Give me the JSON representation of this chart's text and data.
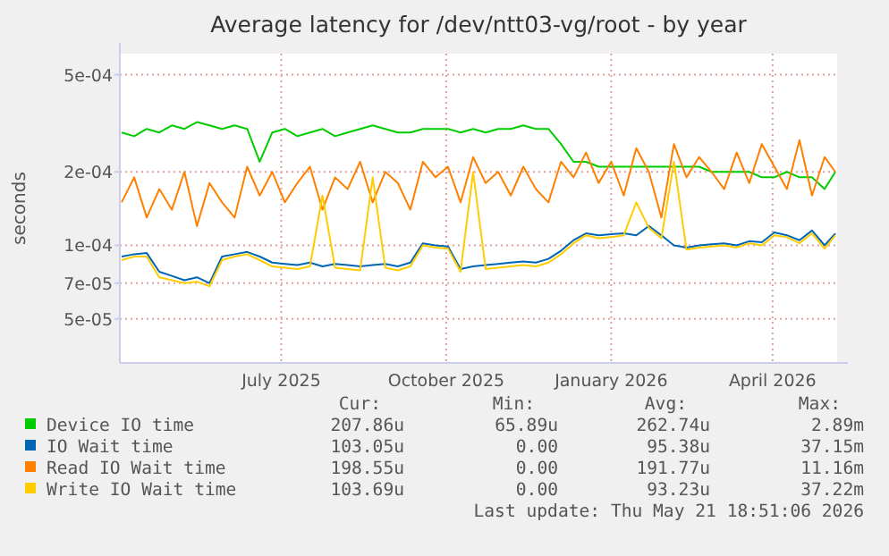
{
  "chart_data": {
    "type": "line",
    "title": "Average latency for /dev/ntt03-vg/root - by year",
    "ylabel": "seconds",
    "log": true,
    "grid": true,
    "legend": "bottom",
    "ylim": [
      3.3e-05,
      0.00061
    ],
    "yticks": [
      {
        "value": 5e-05,
        "label": "5e-05"
      },
      {
        "value": 7e-05,
        "label": "7e-05"
      },
      {
        "value": 0.0001,
        "label": "1e-04"
      },
      {
        "value": 0.0002,
        "label": "2e-04"
      },
      {
        "value": 0.0005,
        "label": "5e-04"
      }
    ],
    "xlim": [
      "2025-04-17",
      "2026-05-22"
    ],
    "xticks": [
      {
        "value": "2025-07-16",
        "label": "July 2025"
      },
      {
        "value": "2025-10-16",
        "label": "October 2025"
      },
      {
        "value": "2026-01-16",
        "label": "January 2026"
      },
      {
        "value": "2026-04-16",
        "label": "April 2026"
      }
    ],
    "x": [
      "2025-04-18",
      "2025-04-25",
      "2025-05-02",
      "2025-05-09",
      "2025-05-16",
      "2025-05-23",
      "2025-05-30",
      "2025-06-06",
      "2025-06-13",
      "2025-06-20",
      "2025-06-27",
      "2025-07-04",
      "2025-07-11",
      "2025-07-18",
      "2025-07-25",
      "2025-08-01",
      "2025-08-08",
      "2025-08-15",
      "2025-08-22",
      "2025-08-29",
      "2025-09-05",
      "2025-09-12",
      "2025-09-19",
      "2025-09-26",
      "2025-10-03",
      "2025-10-10",
      "2025-10-17",
      "2025-10-24",
      "2025-10-31",
      "2025-11-07",
      "2025-11-14",
      "2025-11-21",
      "2025-11-28",
      "2025-12-05",
      "2025-12-12",
      "2025-12-19",
      "2025-12-26",
      "2026-01-02",
      "2026-01-09",
      "2026-01-16",
      "2026-01-23",
      "2026-01-30",
      "2026-02-06",
      "2026-02-13",
      "2026-02-20",
      "2026-02-27",
      "2026-03-06",
      "2026-03-13",
      "2026-03-20",
      "2026-03-27",
      "2026-04-03",
      "2026-04-10",
      "2026-04-17",
      "2026-04-24",
      "2026-05-01",
      "2026-05-08",
      "2026-05-15",
      "2026-05-21"
    ],
    "series": [
      {
        "name": "Device IO time",
        "color": "#00cc00",
        "values": [
          0.00029,
          0.00028,
          0.0003,
          0.00029,
          0.00031,
          0.0003,
          0.00032,
          0.00031,
          0.0003,
          0.00031,
          0.0003,
          0.00022,
          0.00029,
          0.0003,
          0.00028,
          0.00029,
          0.0003,
          0.00028,
          0.00029,
          0.0003,
          0.00031,
          0.0003,
          0.00029,
          0.00029,
          0.0003,
          0.0003,
          0.0003,
          0.00029,
          0.0003,
          0.00029,
          0.0003,
          0.0003,
          0.00031,
          0.0003,
          0.0003,
          0.00026,
          0.00022,
          0.00022,
          0.00021,
          0.00021,
          0.00021,
          0.00021,
          0.00021,
          0.00021,
          0.00021,
          0.00021,
          0.00021,
          0.0002,
          0.0002,
          0.0002,
          0.0002,
          0.00019,
          0.00019,
          0.0002,
          0.00019,
          0.00019,
          0.00017,
          0.0002
        ]
      },
      {
        "name": "IO Wait time",
        "color": "#0066b3",
        "values": [
          9e-05,
          9.2e-05,
          9.3e-05,
          7.8e-05,
          7.5e-05,
          7.2e-05,
          7.4e-05,
          7e-05,
          9e-05,
          9.2e-05,
          9.4e-05,
          9e-05,
          8.5e-05,
          8.4e-05,
          8.3e-05,
          8.5e-05,
          8.2e-05,
          8.4e-05,
          8.3e-05,
          8.2e-05,
          8.3e-05,
          8.4e-05,
          8.2e-05,
          8.5e-05,
          0.000102,
          0.0001,
          9.9e-05,
          8e-05,
          8.2e-05,
          8.3e-05,
          8.4e-05,
          8.5e-05,
          8.6e-05,
          8.5e-05,
          8.8e-05,
          9.5e-05,
          0.000105,
          0.000112,
          0.00011,
          0.000111,
          0.000112,
          0.00011,
          0.00012,
          0.00011,
          0.0001,
          9.8e-05,
          0.0001,
          0.000101,
          0.000102,
          0.0001,
          0.000104,
          0.000103,
          0.000113,
          0.00011,
          0.000105,
          0.000115,
          0.0001,
          0.000112
        ]
      },
      {
        "name": "Read IO Wait time",
        "color": "#ff8000",
        "values": [
          0.00015,
          0.00019,
          0.00013,
          0.00017,
          0.00014,
          0.0002,
          0.00012,
          0.00018,
          0.00015,
          0.00013,
          0.00021,
          0.00016,
          0.0002,
          0.00015,
          0.00018,
          0.00021,
          0.00014,
          0.00019,
          0.00017,
          0.00022,
          0.00015,
          0.0002,
          0.00018,
          0.00014,
          0.00022,
          0.00019,
          0.00021,
          0.00015,
          0.00023,
          0.00018,
          0.0002,
          0.00016,
          0.00021,
          0.00017,
          0.00015,
          0.00022,
          0.00019,
          0.00024,
          0.00018,
          0.00022,
          0.00016,
          0.00025,
          0.0002,
          0.00013,
          0.00026,
          0.00019,
          0.00023,
          0.0002,
          0.00017,
          0.00024,
          0.00018,
          0.00026,
          0.00021,
          0.00017,
          0.00027,
          0.00016,
          0.00023,
          0.0002
        ]
      },
      {
        "name": "Write IO Wait time",
        "color": "#ffcc00",
        "values": [
          8.7e-05,
          9e-05,
          9e-05,
          7.4e-05,
          7.2e-05,
          7e-05,
          7.1e-05,
          6.8e-05,
          8.7e-05,
          9e-05,
          9.2e-05,
          8.7e-05,
          8.2e-05,
          8.1e-05,
          8e-05,
          8.2e-05,
          0.00016,
          8.1e-05,
          8e-05,
          7.9e-05,
          0.00019,
          8.1e-05,
          7.9e-05,
          8.2e-05,
          0.0001,
          9.8e-05,
          9.7e-05,
          7.8e-05,
          0.0002,
          8e-05,
          8.1e-05,
          8.2e-05,
          8.3e-05,
          8.2e-05,
          8.5e-05,
          9.2e-05,
          0.000102,
          0.00011,
          0.000107,
          0.000108,
          0.00011,
          0.00015,
          0.000118,
          0.000107,
          0.00022,
          9.6e-05,
          9.8e-05,
          9.9e-05,
          0.0001,
          9.8e-05,
          0.000102,
          0.0001,
          0.00011,
          0.000108,
          0.000102,
          0.000112,
          9.7e-05,
          0.00011
        ]
      }
    ],
    "annotations": [
      "Cur:",
      "Min:",
      "Avg:",
      "Max:",
      "207.86u",
      "65.89u",
      "262.74u",
      "2.89m",
      "103.05u",
      "0.00",
      "95.38u",
      "37.15m",
      "198.55u",
      "0.00",
      "191.77u",
      "11.16m",
      "103.69u",
      "0.00",
      "93.23u",
      "37.22m",
      "Last update: Thu May 21 18:51:06 2026"
    ]
  }
}
